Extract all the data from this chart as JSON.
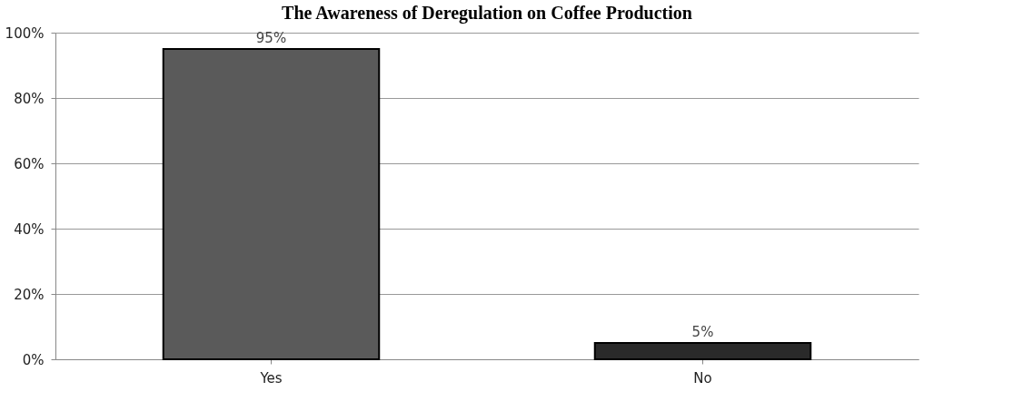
{
  "chart_data": {
    "type": "bar",
    "title": "The Awareness of Deregulation on Coffee Production",
    "categories": [
      "Yes",
      "No"
    ],
    "values": [
      95,
      5
    ],
    "colors": [
      "#5a5a5a",
      "#2a2a2a"
    ],
    "value_labels": [
      "95%",
      "5%"
    ],
    "ylim": [
      0,
      100
    ],
    "yticks": [
      {
        "value": 0,
        "label": "0%"
      },
      {
        "value": 20,
        "label": "20%"
      },
      {
        "value": 40,
        "label": "40%"
      },
      {
        "value": 60,
        "label": "60%"
      },
      {
        "value": 80,
        "label": "80%"
      },
      {
        "value": 100,
        "label": "100%"
      }
    ],
    "grid": "y"
  }
}
